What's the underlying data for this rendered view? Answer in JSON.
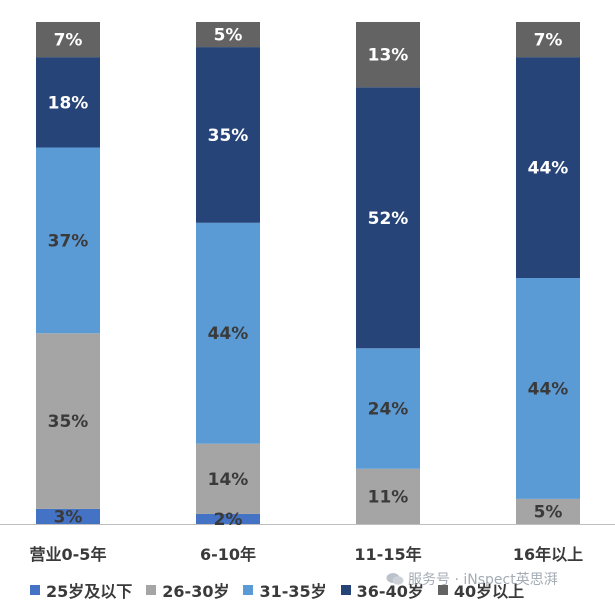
{
  "chart_data": {
    "type": "bar",
    "stacked": true,
    "normalized": true,
    "categories": [
      "营业0-5年",
      "6-10年",
      "11-15年",
      "16年以上"
    ],
    "series": [
      {
        "name": "25岁及以下",
        "color": "#4472c4",
        "values": [
          3,
          2,
          0,
          0
        ],
        "labels": [
          "3%",
          "2%",
          "",
          ""
        ],
        "label_color": "#3a3a3a"
      },
      {
        "name": "26-30岁",
        "color": "#a5a5a5",
        "values": [
          35,
          14,
          11,
          5
        ],
        "labels": [
          "35%",
          "14%",
          "11%",
          "5%"
        ],
        "label_color": "#3a3a3a"
      },
      {
        "name": "31-35岁",
        "color": "#5b9bd5",
        "values": [
          37,
          44,
          24,
          44
        ],
        "labels": [
          "37%",
          "44%",
          "24%",
          "44%"
        ],
        "label_color": "#3a3a3a"
      },
      {
        "name": "36-40岁",
        "color": "#264478",
        "values": [
          18,
          35,
          52,
          44
        ],
        "labels": [
          "18%",
          "35%",
          "52%",
          "44%"
        ],
        "label_color": "#ffffff"
      },
      {
        "name": "40岁以上",
        "color": "#636363",
        "values": [
          7,
          5,
          13,
          7
        ],
        "labels": [
          "7%",
          "5%",
          "13%",
          "7%"
        ],
        "label_color": "#ffffff"
      }
    ],
    "legend_position": "bottom",
    "grid": false
  },
  "watermark": {
    "text": "服务号 · iNspect英思湃",
    "icon": "chat-bubble-icon"
  }
}
